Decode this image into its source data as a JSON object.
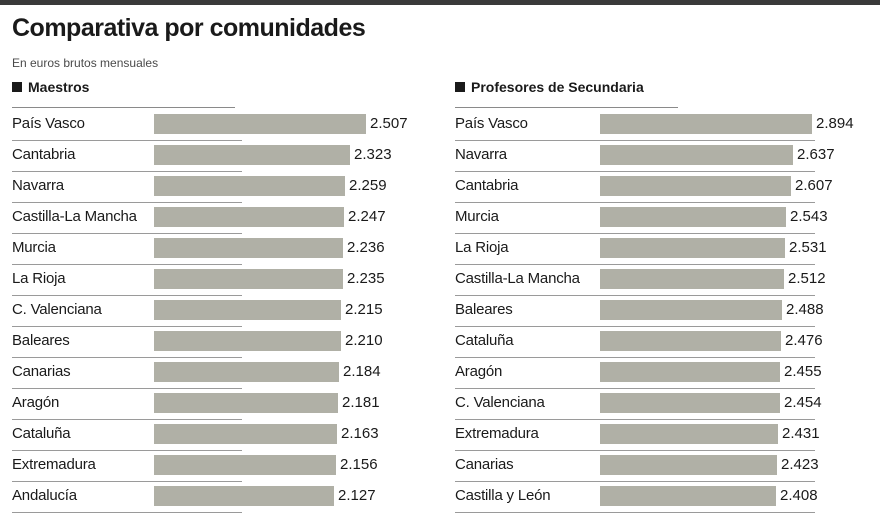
{
  "title": "Comparativa por comunidades",
  "subtitle": "En euros brutos mensuales",
  "chart_data": [
    {
      "type": "bar",
      "orientation": "horizontal",
      "title": "Maestros",
      "categories": [
        "País Vasco",
        "Cantabria",
        "Navarra",
        "Castilla-La Mancha",
        "Murcia",
        "La Rioja",
        "C. Valenciana",
        "Baleares",
        "Canarias",
        "Aragón",
        "Cataluña",
        "Extremadura",
        "Andalucía"
      ],
      "values": [
        2507,
        2323,
        2259,
        2247,
        2236,
        2235,
        2215,
        2210,
        2184,
        2181,
        2163,
        2156,
        2127
      ],
      "labels": [
        "2.507",
        "2.323",
        "2.259",
        "2.247",
        "2.236",
        "2.235",
        "2.215",
        "2.210",
        "2.184",
        "2.181",
        "2.163",
        "2.156",
        "2.127"
      ],
      "unit": "euros brutos mensuales",
      "colors": {
        "bar": "#b0b0a6"
      }
    },
    {
      "type": "bar",
      "orientation": "horizontal",
      "title": "Profesores de Secundaria",
      "categories": [
        "País Vasco",
        "Navarra",
        "Cantabria",
        "Murcia",
        "La Rioja",
        "Castilla-La Mancha",
        "Baleares",
        "Cataluña",
        "Aragón",
        "C. Valenciana",
        "Extremadura",
        "Canarias",
        "Castilla y León"
      ],
      "values": [
        2894,
        2637,
        2607,
        2543,
        2531,
        2512,
        2488,
        2476,
        2455,
        2454,
        2431,
        2423,
        2408
      ],
      "labels": [
        "2.894",
        "2.637",
        "2.607",
        "2.543",
        "2.531",
        "2.512",
        "2.488",
        "2.476",
        "2.455",
        "2.454",
        "2.431",
        "2.423",
        "2.408"
      ],
      "unit": "euros brutos mensuales",
      "colors": {
        "bar": "#b0b0a6"
      }
    }
  ]
}
